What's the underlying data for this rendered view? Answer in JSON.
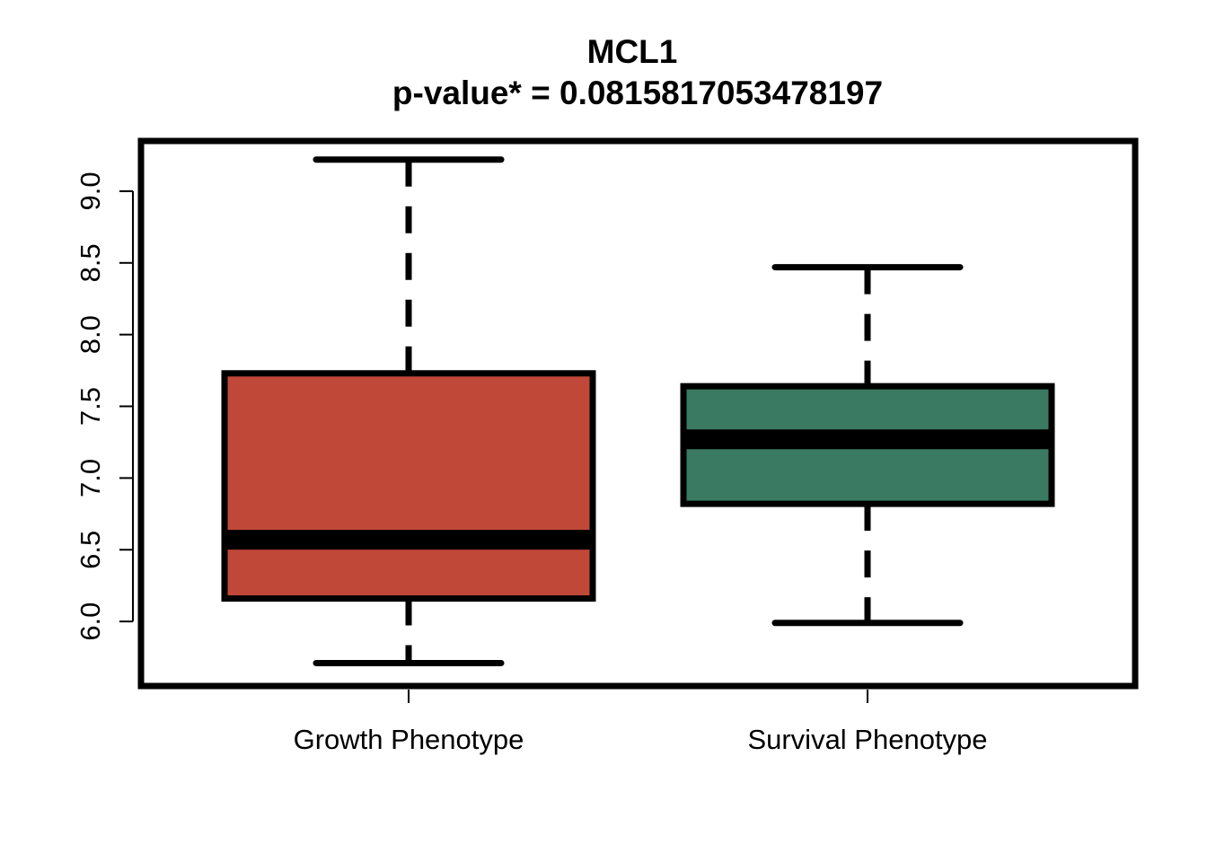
{
  "chart_data": {
    "type": "box",
    "title": "MCL1",
    "subtitle": "p-value* = 0.0815817053478197",
    "xlabel": "",
    "ylabel": "",
    "ylim": [
      5.55,
      9.35
    ],
    "yticks": [
      "6.0",
      "6.5",
      "7.0",
      "7.5",
      "8.0",
      "8.5",
      "9.0"
    ],
    "categories": [
      "Growth Phenotype",
      "Survival Phenotype"
    ],
    "boxes": [
      {
        "category": "Growth Phenotype",
        "min": 5.71,
        "q1": 6.16,
        "median": 6.57,
        "q3": 7.73,
        "max": 9.22,
        "color": "#C04838"
      },
      {
        "category": "Survival Phenotype",
        "min": 5.99,
        "q1": 6.82,
        "median": 7.27,
        "q3": 7.64,
        "max": 8.47,
        "color": "#3A7A62"
      }
    ],
    "grid": false,
    "legend": "none"
  }
}
